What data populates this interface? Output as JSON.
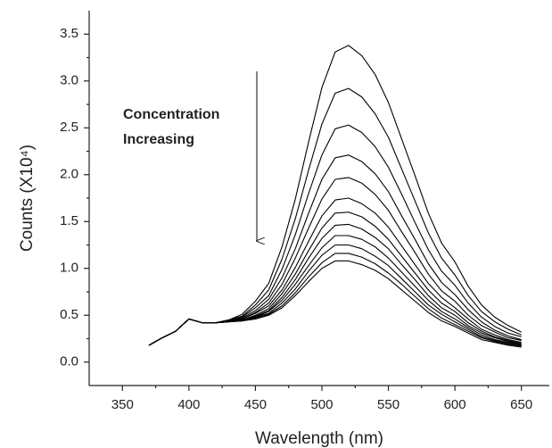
{
  "chart_data": {
    "type": "line",
    "x_label": "Wavelength (nm)",
    "y_label": "Counts (X10⁴)",
    "annotation": [
      "Concentration",
      "Increasing"
    ],
    "x": [
      370,
      380,
      390,
      400,
      410,
      420,
      430,
      440,
      450,
      460,
      470,
      480,
      490,
      500,
      510,
      520,
      530,
      540,
      550,
      560,
      570,
      580,
      590,
      600,
      610,
      620,
      630,
      640,
      650
    ],
    "series": [
      {
        "color": "#000000",
        "values": [
          0.18,
          0.26,
          0.33,
          0.46,
          0.42,
          0.42,
          0.45,
          0.51,
          0.65,
          0.84,
          1.23,
          1.74,
          2.35,
          2.93,
          3.31,
          3.38,
          3.27,
          3.07,
          2.77,
          2.38,
          1.99,
          1.59,
          1.27,
          1.07,
          0.81,
          0.61,
          0.48,
          0.39,
          0.32
        ]
      },
      {
        "color": "#000000",
        "values": [
          0.18,
          0.26,
          0.33,
          0.46,
          0.42,
          0.42,
          0.45,
          0.49,
          0.61,
          0.77,
          1.1,
          1.53,
          2.05,
          2.54,
          2.87,
          2.92,
          2.83,
          2.65,
          2.4,
          2.06,
          1.72,
          1.38,
          1.11,
          0.93,
          0.71,
          0.54,
          0.43,
          0.35,
          0.29
        ]
      },
      {
        "color": "#000000",
        "values": [
          0.18,
          0.26,
          0.33,
          0.46,
          0.42,
          0.42,
          0.44,
          0.48,
          0.58,
          0.71,
          0.99,
          1.36,
          1.8,
          2.21,
          2.49,
          2.53,
          2.45,
          2.3,
          2.08,
          1.79,
          1.49,
          1.2,
          0.97,
          0.82,
          0.63,
          0.48,
          0.38,
          0.31,
          0.27
        ]
      },
      {
        "color": "#000000",
        "values": [
          0.18,
          0.26,
          0.33,
          0.46,
          0.42,
          0.42,
          0.44,
          0.47,
          0.55,
          0.67,
          0.9,
          1.21,
          1.59,
          1.95,
          2.18,
          2.21,
          2.14,
          2.01,
          1.82,
          1.56,
          1.31,
          1.05,
          0.85,
          0.72,
          0.56,
          0.43,
          0.34,
          0.28,
          0.24
        ]
      },
      {
        "color": "#000000",
        "values": [
          0.18,
          0.26,
          0.33,
          0.46,
          0.42,
          0.42,
          0.44,
          0.46,
          0.53,
          0.63,
          0.83,
          1.11,
          1.43,
          1.74,
          1.95,
          1.97,
          1.91,
          1.79,
          1.62,
          1.39,
          1.17,
          0.94,
          0.76,
          0.65,
          0.5,
          0.39,
          0.32,
          0.26,
          0.23
        ]
      },
      {
        "color": "#000000",
        "values": [
          0.18,
          0.26,
          0.33,
          0.46,
          0.42,
          0.42,
          0.44,
          0.46,
          0.52,
          0.6,
          0.77,
          1.01,
          1.29,
          1.56,
          1.73,
          1.75,
          1.69,
          1.59,
          1.44,
          1.24,
          1.04,
          0.84,
          0.69,
          0.58,
          0.46,
          0.35,
          0.29,
          0.24,
          0.21
        ]
      },
      {
        "color": "#000000",
        "values": [
          0.18,
          0.26,
          0.33,
          0.46,
          0.42,
          0.42,
          0.43,
          0.45,
          0.5,
          0.57,
          0.73,
          0.94,
          1.19,
          1.43,
          1.59,
          1.6,
          1.55,
          1.45,
          1.31,
          1.13,
          0.95,
          0.77,
          0.63,
          0.54,
          0.42,
          0.33,
          0.27,
          0.23,
          0.2
        ]
      },
      {
        "color": "#000000",
        "values": [
          0.18,
          0.26,
          0.33,
          0.46,
          0.42,
          0.42,
          0.43,
          0.45,
          0.49,
          0.55,
          0.69,
          0.88,
          1.11,
          1.32,
          1.46,
          1.47,
          1.42,
          1.33,
          1.21,
          1.04,
          0.88,
          0.71,
          0.58,
          0.5,
          0.39,
          0.31,
          0.26,
          0.22,
          0.19
        ]
      },
      {
        "color": "#000000",
        "values": [
          0.18,
          0.26,
          0.33,
          0.46,
          0.42,
          0.42,
          0.43,
          0.45,
          0.48,
          0.54,
          0.66,
          0.83,
          1.03,
          1.22,
          1.35,
          1.35,
          1.31,
          1.23,
          1.11,
          0.96,
          0.81,
          0.66,
          0.54,
          0.46,
          0.37,
          0.29,
          0.24,
          0.21,
          0.18
        ]
      },
      {
        "color": "#000000",
        "values": [
          0.18,
          0.26,
          0.33,
          0.46,
          0.42,
          0.42,
          0.43,
          0.44,
          0.48,
          0.52,
          0.63,
          0.78,
          0.97,
          1.14,
          1.25,
          1.25,
          1.21,
          1.13,
          1.03,
          0.89,
          0.75,
          0.61,
          0.51,
          0.43,
          0.35,
          0.27,
          0.23,
          0.2,
          0.18
        ]
      },
      {
        "color": "#000000",
        "values": [
          0.18,
          0.26,
          0.33,
          0.46,
          0.42,
          0.42,
          0.43,
          0.44,
          0.47,
          0.51,
          0.6,
          0.74,
          0.91,
          1.06,
          1.16,
          1.16,
          1.12,
          1.05,
          0.95,
          0.83,
          0.7,
          0.57,
          0.47,
          0.4,
          0.33,
          0.26,
          0.22,
          0.19,
          0.17
        ]
      },
      {
        "color": "#000000",
        "values": [
          0.18,
          0.26,
          0.33,
          0.46,
          0.42,
          0.42,
          0.43,
          0.44,
          0.46,
          0.5,
          0.58,
          0.71,
          0.86,
          1.0,
          1.08,
          1.08,
          1.04,
          0.98,
          0.89,
          0.77,
          0.65,
          0.53,
          0.44,
          0.38,
          0.31,
          0.24,
          0.21,
          0.18,
          0.16
        ]
      }
    ],
    "xlim": [
      325,
      671
    ],
    "xticks": [
      350,
      400,
      450,
      500,
      550,
      600,
      650
    ],
    "ylim": [
      -0.25,
      3.75
    ],
    "yticks": [
      {
        "value": 0,
        "label": "0.0"
      },
      0.5,
      {
        "value": 1,
        "label": "1.0"
      },
      1.5,
      {
        "value": 2,
        "label": "2.0"
      },
      2.5,
      {
        "value": 3,
        "label": "3.0"
      },
      3.5
    ]
  }
}
